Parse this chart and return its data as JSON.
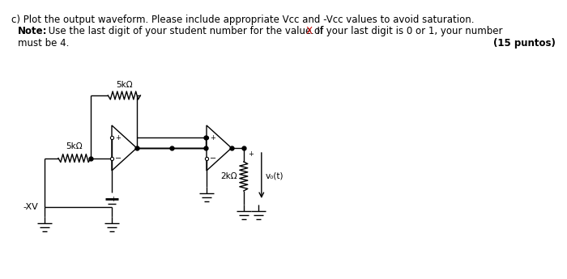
{
  "background_color": "#ffffff",
  "line1": "c) Plot the output waveform. Please include appropriate Vcc and -Vcc values to avoid saturation.",
  "line2_bold": "Note:",
  "line2_normal": " Use the last digit of your student number for the value of ",
  "line2_X": "X",
  "line2_end": ". If your last digit is 0 or 1, your number",
  "line3": "must be 4.",
  "line3_right": "(15 puntos)",
  "font_size": 8.5,
  "color_black": "#000000",
  "color_red": "#cc0000",
  "resistor1_label": "5kΩ",
  "resistor2_label": "5kΩ",
  "resistor3_label": "2kΩ",
  "output_label": "v₀(t)",
  "source_label": "-XV"
}
